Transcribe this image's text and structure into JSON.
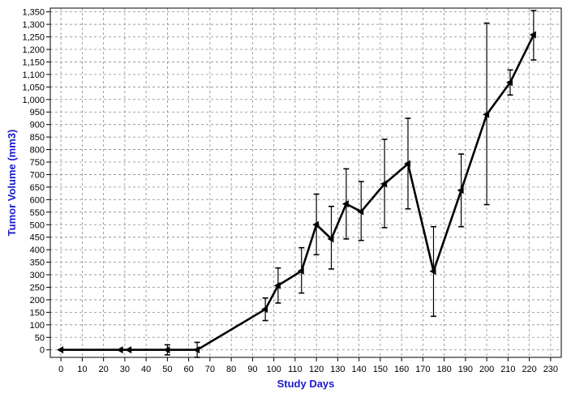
{
  "chart_data": {
    "type": "line",
    "title": "",
    "xlabel": "Study Days",
    "ylabel": "Tumor Volume (mm3)",
    "xlim": [
      -5,
      235
    ],
    "ylim": [
      -30,
      1365
    ],
    "xticks": [
      0,
      10,
      20,
      30,
      40,
      50,
      60,
      70,
      80,
      90,
      100,
      110,
      120,
      130,
      140,
      150,
      160,
      170,
      180,
      190,
      200,
      210,
      220,
      230
    ],
    "yticks": [
      0,
      50,
      100,
      150,
      200,
      250,
      300,
      350,
      400,
      450,
      500,
      550,
      600,
      650,
      700,
      750,
      800,
      850,
      900,
      950,
      1000,
      1050,
      1100,
      1150,
      1200,
      1250,
      1300,
      1350
    ],
    "ytick_labels": [
      "0",
      "50",
      "100",
      "150",
      "200",
      "250",
      "300",
      "350",
      "400",
      "450",
      "500",
      "550",
      "600",
      "650",
      "700",
      "750",
      "800",
      "850",
      "900",
      "950",
      "1,000",
      "1,050",
      "1,100",
      "1,150",
      "1,200",
      "1,250",
      "1,300",
      "1,350"
    ],
    "grid": true,
    "legend": "none",
    "series": [
      {
        "color": "#000000",
        "x": [
          0,
          28,
          32,
          50,
          64,
          96,
          102,
          113,
          120,
          127,
          134,
          141,
          152,
          163,
          175,
          188,
          200,
          211,
          222
        ],
        "y": [
          0,
          0,
          0,
          0,
          0,
          162,
          257,
          315,
          500,
          443,
          583,
          552,
          663,
          743,
          314,
          637,
          940,
          1068,
          1258
        ],
        "err_low": [
          0,
          0,
          0,
          20,
          30,
          45,
          70,
          88,
          120,
          120,
          140,
          115,
          175,
          180,
          180,
          145,
          360,
          50,
          100
        ],
        "err_high": [
          0,
          0,
          0,
          20,
          30,
          45,
          70,
          93,
          122,
          130,
          140,
          120,
          178,
          182,
          178,
          145,
          365,
          50,
          97
        ]
      }
    ]
  }
}
